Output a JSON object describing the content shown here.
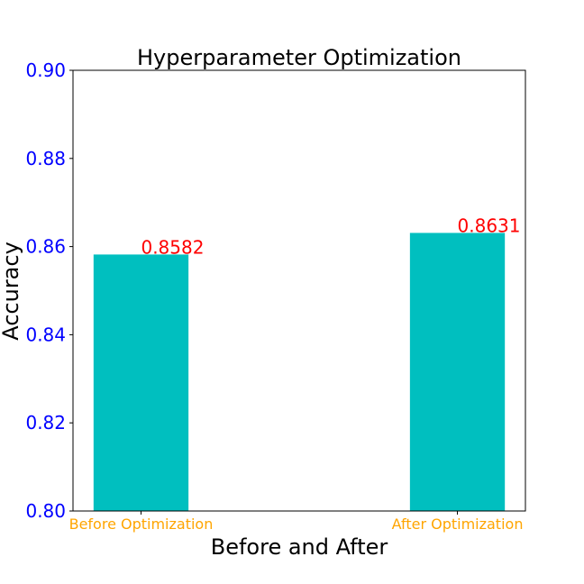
{
  "chart_data": {
    "type": "bar",
    "title": "Hyperparameter Optimization",
    "xlabel": "Before and After",
    "ylabel": "Accuracy",
    "categories": [
      "Before Optimization",
      "After Optimization"
    ],
    "values": [
      0.8582,
      0.8631
    ],
    "data_labels": [
      "0.8582",
      "0.8631"
    ],
    "ylim": [
      0.8,
      0.9
    ],
    "yticks": [
      "0.80",
      "0.82",
      "0.84",
      "0.86",
      "0.88",
      "0.90"
    ],
    "grid": false,
    "colors": {
      "bar": "#00bfbf",
      "ytick_label": "#0000ff",
      "xtick_label": "#ffa500",
      "data_label": "#ff0000"
    }
  }
}
